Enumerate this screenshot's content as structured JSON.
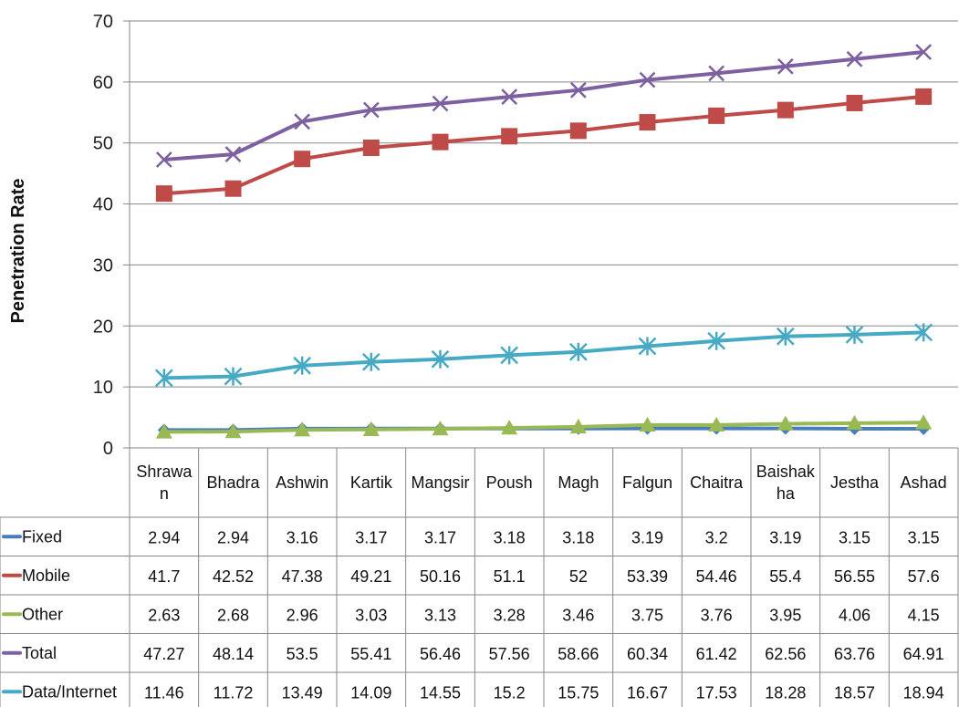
{
  "chart_data": {
    "type": "line",
    "ylabel": "Penetration Rate",
    "xlabel": "",
    "ylim": [
      0,
      70
    ],
    "yticks": [
      "0",
      "10",
      "20",
      "30",
      "40",
      "50",
      "60",
      "70"
    ],
    "grid": "horizontal",
    "legend": "data table below plot",
    "categories": [
      [
        "Shrawa",
        "n"
      ],
      [
        "Bhadra"
      ],
      [
        "Ashwin"
      ],
      [
        "Kartik"
      ],
      [
        "Mangsir"
      ],
      [
        "Poush"
      ],
      [
        "Magh"
      ],
      [
        "Falgun"
      ],
      [
        "Chaitra"
      ],
      [
        "Baishak",
        "ha"
      ],
      [
        "Jestha"
      ],
      [
        "Ashad"
      ]
    ],
    "series": [
      {
        "name": "Fixed",
        "color": "#4a7ebb",
        "marker": "diamond",
        "values": [
          2.94,
          2.94,
          3.16,
          3.17,
          3.17,
          3.18,
          3.18,
          3.19,
          3.2,
          3.19,
          3.15,
          3.15
        ],
        "labels": [
          "2.94",
          "2.94",
          "3.16",
          "3.17",
          "3.17",
          "3.18",
          "3.18",
          "3.19",
          "3.2",
          "3.19",
          "3.15",
          "3.15"
        ]
      },
      {
        "name": "Mobile",
        "color": "#be4b48",
        "marker": "square",
        "values": [
          41.7,
          42.52,
          47.38,
          49.21,
          50.16,
          51.1,
          52,
          53.39,
          54.46,
          55.4,
          56.55,
          57.6
        ],
        "labels": [
          "41.7",
          "42.52",
          "47.38",
          "49.21",
          "50.16",
          "51.1",
          "52",
          "53.39",
          "54.46",
          "55.4",
          "56.55",
          "57.6"
        ]
      },
      {
        "name": "Other",
        "color": "#98b954",
        "marker": "triangle",
        "values": [
          2.63,
          2.68,
          2.96,
          3.03,
          3.13,
          3.28,
          3.46,
          3.75,
          3.76,
          3.95,
          4.06,
          4.15
        ],
        "labels": [
          "2.63",
          "2.68",
          "2.96",
          "3.03",
          "3.13",
          "3.28",
          "3.46",
          "3.75",
          "3.76",
          "3.95",
          "4.06",
          "4.15"
        ]
      },
      {
        "name": "Total",
        "color": "#7d60a0",
        "marker": "x",
        "values": [
          47.27,
          48.14,
          53.5,
          55.41,
          56.46,
          57.56,
          58.66,
          60.34,
          61.42,
          62.56,
          63.76,
          64.91
        ],
        "labels": [
          "47.27",
          "48.14",
          "53.5",
          "55.41",
          "56.46",
          "57.56",
          "58.66",
          "60.34",
          "61.42",
          "62.56",
          "63.76",
          "64.91"
        ]
      },
      {
        "name": "Data/Internet",
        "color": "#46aac4",
        "marker": "star",
        "values": [
          11.46,
          11.72,
          13.49,
          14.09,
          14.55,
          15.2,
          15.75,
          16.67,
          17.53,
          18.28,
          18.57,
          18.94
        ],
        "labels": [
          "11.46",
          "11.72",
          "13.49",
          "14.09",
          "14.55",
          "15.2",
          "15.75",
          "16.67",
          "17.53",
          "18.28",
          "18.57",
          "18.94"
        ]
      }
    ]
  }
}
